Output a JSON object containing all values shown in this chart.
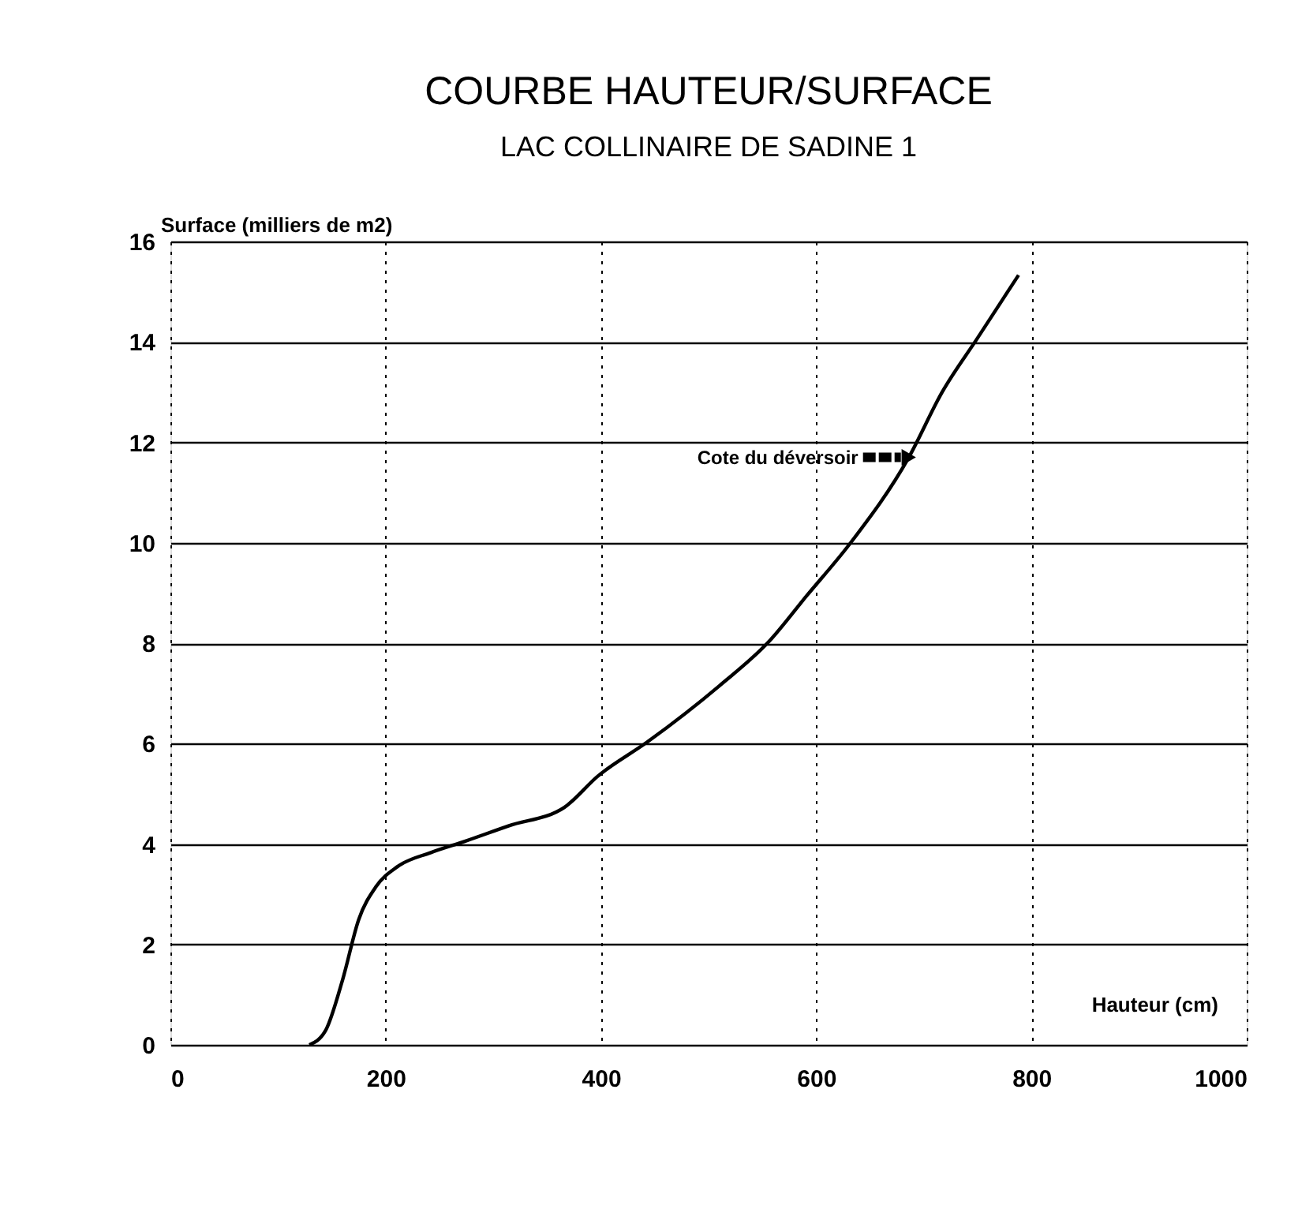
{
  "chart_data": {
    "type": "line",
    "title": "COURBE HAUTEUR/SURFACE",
    "subtitle": "LAC COLLINAIRE DE SADINE 1",
    "xlabel": "Hauteur (cm)",
    "ylabel": "Surface (milliers de m2)",
    "x": [
      129,
      144,
      160,
      175,
      191,
      211,
      242,
      273,
      314,
      366,
      397,
      443,
      510,
      556,
      591,
      632,
      686,
      717,
      750,
      788
    ],
    "series": [
      {
        "color": "#000000",
        "values": [
          0,
          0.28,
          1.3,
          2.5,
          3.15,
          3.55,
          3.83,
          4.05,
          4.36,
          4.73,
          5.35,
          6.03,
          7.15,
          8.03,
          8.94,
          10.0,
          11.7,
          13.0,
          14.08,
          15.33
        ]
      }
    ],
    "xlim": [
      0,
      1000
    ],
    "xticks": [
      0,
      200,
      400,
      600,
      800,
      1000
    ],
    "ylim": [
      0,
      16
    ],
    "yticks": [
      0,
      2,
      4,
      6,
      8,
      10,
      12,
      14,
      16
    ],
    "grid": true,
    "marker": "none",
    "line_style": "solid",
    "annotations": [
      {
        "text": "Cote du déversoir",
        "x": 686,
        "y": 11.7
      }
    ]
  }
}
